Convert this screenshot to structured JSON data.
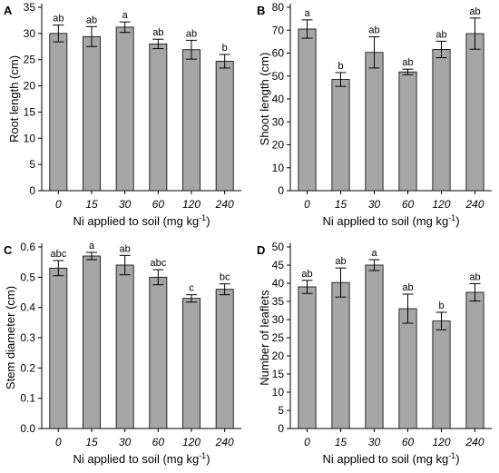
{
  "chart_data": [
    {
      "type": "bar",
      "panel": "A",
      "categories": [
        "0",
        "15",
        "30",
        "60",
        "120",
        "240"
      ],
      "values": [
        30.0,
        29.4,
        31.2,
        28.0,
        26.9,
        24.7
      ],
      "errors": [
        1.6,
        1.9,
        1.0,
        0.9,
        1.8,
        1.3
      ],
      "labels": [
        "ab",
        "ab",
        "a",
        "ab",
        "ab",
        "b"
      ],
      "ylim": [
        0,
        35
      ],
      "yticks": [
        0,
        5,
        10,
        15,
        20,
        25,
        30,
        35
      ],
      "ylabel": "Root length (cm)",
      "xlabel_main": "Ni applied to soil (mg kg",
      "xlabel_sup": "-1",
      "xlabel_end": ")"
    },
    {
      "type": "bar",
      "panel": "B",
      "categories": [
        "0",
        "15",
        "30",
        "60",
        "120",
        "240"
      ],
      "values": [
        70.5,
        48.5,
        60.3,
        51.8,
        61.6,
        68.5
      ],
      "errors": [
        4.0,
        3.0,
        6.8,
        1.2,
        3.6,
        6.8
      ],
      "labels": [
        "a",
        "b",
        "ab",
        "ab",
        "ab",
        "ab"
      ],
      "ylim": [
        0,
        80
      ],
      "yticks": [
        0,
        10,
        20,
        30,
        40,
        50,
        60,
        70,
        80
      ],
      "ylabel": "Shoot length (cm)",
      "xlabel_main": "Ni applied to soil (mg kg",
      "xlabel_sup": "-1",
      "xlabel_end": ")"
    },
    {
      "type": "bar",
      "panel": "C",
      "categories": [
        "0",
        "15",
        "30",
        "60",
        "120",
        "240"
      ],
      "values": [
        0.53,
        0.57,
        0.54,
        0.5,
        0.43,
        0.46
      ],
      "errors": [
        0.025,
        0.012,
        0.032,
        0.025,
        0.012,
        0.018
      ],
      "labels": [
        "abc",
        "a",
        "ab",
        "abc",
        "c",
        "bc"
      ],
      "ylim": [
        0,
        0.6
      ],
      "yticks": [
        0.0,
        0.1,
        0.2,
        0.3,
        0.4,
        0.5,
        0.6
      ],
      "ytick_labels": [
        "0.0",
        "0.1",
        "0.2",
        "0.3",
        "0.4",
        "0.5",
        "0.6"
      ],
      "ylabel": "Stem diameter (cm)",
      "xlabel_main": "Ni applied to soil (mg kg",
      "xlabel_sup": "-1",
      "xlabel_end": ")"
    },
    {
      "type": "bar",
      "panel": "D",
      "categories": [
        "0",
        "15",
        "30",
        "60",
        "120",
        "240"
      ],
      "values": [
        39.0,
        40.2,
        45.0,
        33.0,
        29.6,
        37.5
      ],
      "errors": [
        1.8,
        4.0,
        1.5,
        4.0,
        2.4,
        2.4
      ],
      "labels": [
        "ab",
        "ab",
        "a",
        "ab",
        "b",
        "ab"
      ],
      "ylim": [
        0,
        50
      ],
      "yticks": [
        0,
        5,
        10,
        15,
        20,
        25,
        30,
        35,
        40,
        45,
        50
      ],
      "ylabel": "Number of leaflets",
      "xlabel_main": "Ni applied to soil (mg kg",
      "xlabel_sup": "-1",
      "xlabel_end": ")"
    }
  ]
}
